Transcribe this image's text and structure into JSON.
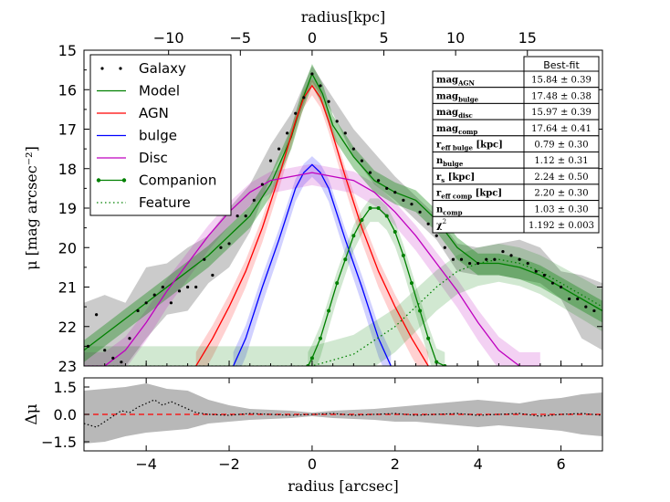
{
  "chart_data": {
    "type": "line",
    "main_panel": {
      "xlabel_top": "radius[kpc]",
      "ylabel": "μ [mag arcsec⁻²]",
      "xlim": [
        -5.5,
        7.0
      ],
      "ylim": [
        23,
        15
      ],
      "x_ticks": [
        -4,
        -2,
        0,
        2,
        4,
        6
      ],
      "y_ticks": [
        15,
        16,
        17,
        18,
        19,
        20,
        21,
        22,
        23
      ],
      "kpc_ticks": [
        -10,
        -5,
        0,
        5,
        10,
        15
      ],
      "kpc_per_arcsec": 2.89,
      "galaxy_points": {
        "name": "Galaxy",
        "x": [
          -5.4,
          -5.2,
          -5.0,
          -4.8,
          -4.6,
          -4.4,
          -4.2,
          -4.0,
          -3.8,
          -3.6,
          -3.4,
          -3.2,
          -3.0,
          -2.8,
          -2.6,
          -2.4,
          -2.2,
          -2.0,
          -1.8,
          -1.6,
          -1.4,
          -1.2,
          -1.0,
          -0.8,
          -0.6,
          -0.4,
          -0.2,
          0.0,
          0.2,
          0.4,
          0.6,
          0.8,
          1.0,
          1.2,
          1.4,
          1.6,
          1.8,
          2.0,
          2.2,
          2.4,
          2.6,
          2.8,
          3.0,
          3.2,
          3.4,
          3.6,
          3.8,
          4.0,
          4.2,
          4.4,
          4.6,
          4.8,
          5.0,
          5.2,
          5.4,
          5.6,
          5.8,
          6.0,
          6.2,
          6.4,
          6.6,
          6.8
        ],
        "y": [
          22.5,
          21.7,
          22.6,
          22.8,
          22.9,
          22.3,
          21.6,
          21.4,
          21.2,
          21.0,
          21.4,
          21.1,
          21.0,
          21.0,
          20.3,
          20.7,
          20.0,
          19.9,
          19.2,
          19.2,
          18.8,
          18.4,
          17.8,
          17.5,
          17.1,
          16.6,
          16.2,
          15.6,
          15.9,
          16.3,
          16.8,
          17.1,
          17.5,
          17.8,
          18.1,
          18.3,
          18.5,
          18.6,
          18.8,
          18.9,
          19.1,
          19.4,
          19.7,
          20.0,
          20.3,
          20.3,
          20.4,
          20.4,
          20.3,
          20.3,
          20.1,
          20.2,
          20.3,
          20.4,
          20.6,
          20.7,
          20.9,
          21.0,
          21.3,
          21.3,
          21.5,
          21.6
        ]
      },
      "band_galaxy": {
        "x": [
          -5.5,
          -5.0,
          -4.5,
          -4.0,
          -3.5,
          -3.0,
          -2.5,
          -2.0,
          -1.5,
          -1.0,
          -0.5,
          0.0,
          0.5,
          1.0,
          1.5,
          2.0,
          2.5,
          3.0,
          3.5,
          4.0,
          4.5,
          5.0,
          5.5,
          6.0,
          6.5,
          7.0
        ],
        "lo": [
          21.4,
          21.2,
          21.4,
          20.5,
          20.4,
          20.0,
          19.7,
          19.0,
          18.4,
          17.4,
          16.6,
          15.4,
          16.2,
          17.0,
          17.6,
          18.2,
          18.7,
          19.2,
          19.9,
          20.0,
          19.9,
          19.8,
          20.0,
          20.6,
          20.7,
          20.9
        ],
        "hi": [
          23.0,
          23.0,
          23.0,
          22.3,
          21.7,
          21.6,
          20.9,
          20.5,
          19.6,
          18.2,
          17.2,
          15.8,
          16.6,
          17.7,
          18.4,
          18.8,
          19.3,
          19.8,
          20.6,
          20.7,
          20.7,
          20.8,
          20.9,
          21.3,
          22.3,
          22.6
        ]
      },
      "series": [
        {
          "name": "Model",
          "color": "#008000",
          "style": "solid",
          "x": [
            -5.5,
            -5.0,
            -4.5,
            -4.0,
            -3.5,
            -3.0,
            -2.5,
            -2.0,
            -1.5,
            -1.0,
            -0.5,
            -0.25,
            0.0,
            0.25,
            0.5,
            1.0,
            1.5,
            2.0,
            2.5,
            3.0,
            3.5,
            4.0,
            4.5,
            5.0,
            5.5,
            6.0,
            6.5,
            7.0
          ],
          "y": [
            22.6,
            22.2,
            21.8,
            21.4,
            21.0,
            20.6,
            20.2,
            19.7,
            19.2,
            18.4,
            17.2,
            16.3,
            15.6,
            16.1,
            16.9,
            17.7,
            18.3,
            18.6,
            18.8,
            19.3,
            20.0,
            20.4,
            20.4,
            20.5,
            20.7,
            21.0,
            21.3,
            21.6
          ]
        },
        {
          "name": "AGN",
          "color": "#ff0000",
          "style": "solid",
          "x": [
            -2.8,
            -2.4,
            -2.0,
            -1.6,
            -1.2,
            -0.8,
            -0.4,
            -0.2,
            0.0,
            0.2,
            0.4,
            0.8,
            1.2,
            1.6,
            2.0,
            2.4,
            2.8
          ],
          "y": [
            23.0,
            22.3,
            21.5,
            20.6,
            19.5,
            18.2,
            16.8,
            16.2,
            15.9,
            16.2,
            16.8,
            18.2,
            19.5,
            20.6,
            21.5,
            22.3,
            23.0
          ]
        },
        {
          "name": "bulge",
          "color": "#0000ff",
          "style": "solid",
          "x": [
            -1.9,
            -1.6,
            -1.2,
            -0.8,
            -0.4,
            -0.2,
            0.0,
            0.2,
            0.4,
            0.8,
            1.2,
            1.6,
            1.9
          ],
          "y": [
            23.0,
            22.3,
            21.0,
            19.8,
            18.5,
            18.1,
            17.9,
            18.1,
            18.5,
            19.8,
            21.0,
            22.3,
            23.0
          ]
        },
        {
          "name": "Disc",
          "color": "#bf00bf",
          "style": "solid",
          "x": [
            -5.5,
            -5.0,
            -4.5,
            -4.0,
            -3.5,
            -3.0,
            -2.5,
            -2.0,
            -1.5,
            -1.0,
            -0.5,
            0.0,
            0.5,
            1.0,
            1.5,
            2.0,
            2.5,
            3.0,
            3.5,
            4.0,
            4.5,
            5.0,
            5.5
          ],
          "y": [
            23.0,
            23.0,
            22.6,
            21.9,
            21.1,
            20.4,
            19.7,
            19.1,
            18.6,
            18.3,
            18.2,
            18.1,
            18.2,
            18.3,
            18.6,
            19.1,
            19.7,
            20.4,
            21.1,
            21.9,
            22.6,
            23.0,
            23.0
          ]
        },
        {
          "name": "Companion",
          "color": "#008000",
          "style": "solid-dots",
          "x": [
            -0.1,
            0.0,
            0.2,
            0.4,
            0.6,
            0.8,
            1.0,
            1.2,
            1.4,
            1.6,
            1.8,
            2.0,
            2.2,
            2.4,
            2.6,
            2.8,
            3.0,
            3.2
          ],
          "y": [
            23.0,
            22.8,
            22.3,
            21.6,
            20.9,
            20.3,
            19.7,
            19.3,
            19.0,
            19.0,
            19.2,
            19.6,
            20.2,
            20.9,
            21.6,
            22.3,
            22.9,
            23.0
          ]
        },
        {
          "name": "Feature",
          "color": "#008000",
          "style": "dotted",
          "x": [
            -5.5,
            -4.0,
            -2.0,
            0.0,
            1.0,
            2.0,
            2.5,
            3.0,
            3.5,
            4.0,
            4.5,
            5.0,
            5.5,
            6.0,
            6.5,
            7.0
          ],
          "y": [
            23.0,
            23.0,
            23.0,
            23.0,
            22.7,
            22.0,
            21.5,
            21.0,
            20.6,
            20.4,
            20.3,
            20.4,
            20.6,
            20.9,
            21.2,
            21.5
          ]
        }
      ],
      "legend": [
        "Galaxy",
        "Model",
        "AGN",
        "bulge",
        "Disc",
        "Companion",
        "Feature"
      ],
      "legend_position": "top-left"
    },
    "residual_panel": {
      "xlabel": "radius [arcsec]",
      "ylabel": "Δμ",
      "ylim": [
        -2.0,
        2.0
      ],
      "y_ticks": [
        1.5,
        0.0,
        -1.5
      ],
      "y_tick_labels": [
        "1.5",
        "0.0",
        "−1.5"
      ],
      "zero_line_color": "#ff0000",
      "residual": {
        "x": [
          -5.5,
          -5.2,
          -5.0,
          -4.8,
          -4.6,
          -4.4,
          -4.2,
          -4.0,
          -3.8,
          -3.6,
          -3.4,
          -3.2,
          -3.0,
          -2.8,
          -2.5,
          -2.0,
          -1.5,
          -1.0,
          -0.5,
          0.0,
          0.5,
          1.0,
          1.5,
          2.0,
          2.5,
          3.0,
          3.5,
          4.0,
          4.5,
          5.0,
          5.5,
          6.0,
          6.5,
          7.0
        ],
        "y": [
          -0.5,
          -0.7,
          -0.4,
          -0.1,
          0.2,
          0.1,
          0.4,
          0.6,
          0.8,
          0.5,
          0.7,
          0.5,
          0.3,
          0.1,
          0.0,
          -0.05,
          0.05,
          0.0,
          -0.05,
          0.0,
          0.05,
          -0.05,
          0.0,
          0.05,
          -0.05,
          0.0,
          0.05,
          -0.05,
          0.0,
          0.05,
          -0.1,
          0.0,
          0.05,
          -0.05
        ]
      },
      "band": {
        "x": [
          -5.5,
          -5.0,
          -4.5,
          -4.0,
          -3.5,
          -3.0,
          -2.5,
          -2.0,
          -1.5,
          -1.0,
          -0.5,
          0.0,
          0.5,
          1.0,
          1.5,
          2.0,
          2.5,
          3.0,
          3.5,
          4.0,
          4.5,
          5.0,
          5.5,
          6.0,
          6.5,
          7.0
        ],
        "lo": [
          -1.6,
          -1.5,
          -1.2,
          -1.0,
          -0.9,
          -0.8,
          -0.5,
          -0.4,
          -0.3,
          -0.25,
          -0.2,
          -0.1,
          -0.2,
          -0.25,
          -0.3,
          -0.4,
          -0.4,
          -0.5,
          -0.6,
          -0.7,
          -0.6,
          -0.7,
          -0.8,
          -0.9,
          -1.1,
          -1.2
        ],
        "hi": [
          1.3,
          1.4,
          1.5,
          1.7,
          1.4,
          1.3,
          0.8,
          0.5,
          0.3,
          0.25,
          0.2,
          0.1,
          0.2,
          0.25,
          0.3,
          0.4,
          0.5,
          0.6,
          0.7,
          0.8,
          0.7,
          0.6,
          0.8,
          0.9,
          1.1,
          1.2
        ]
      }
    },
    "fit_table": {
      "header": "Best-fit",
      "rows": [
        {
          "sym": "mag",
          "sub": "AGN",
          "unit": "",
          "value": "15.84 ± 0.39"
        },
        {
          "sym": "mag",
          "sub": "bulge",
          "unit": "",
          "value": "17.48 ± 0.38"
        },
        {
          "sym": "mag",
          "sub": "disc",
          "unit": "",
          "value": "15.97 ± 0.39"
        },
        {
          "sym": "mag",
          "sub": "comp",
          "unit": "",
          "value": "17.64 ± 0.41"
        },
        {
          "sym": "r",
          "sub": "eff bulge",
          "unit": "[kpc]",
          "value": "0.79 ± 0.30"
        },
        {
          "sym": "n",
          "sub": "bulge",
          "unit": "",
          "value": "1.12 ± 0.31"
        },
        {
          "sym": "r",
          "sub": "s",
          "unit": "[kpc]",
          "value": "2.24 ± 0.50"
        },
        {
          "sym": "r",
          "sub": "eff comp",
          "unit": "[kpc]",
          "value": "2.20 ± 0.30"
        },
        {
          "sym": "n",
          "sub": "comp",
          "unit": "",
          "value": "1.03 ± 0.30"
        },
        {
          "sym": "χ",
          "sub": "",
          "sup": "2",
          "unit": "",
          "value": "1.192 ± 0.003"
        }
      ]
    }
  }
}
